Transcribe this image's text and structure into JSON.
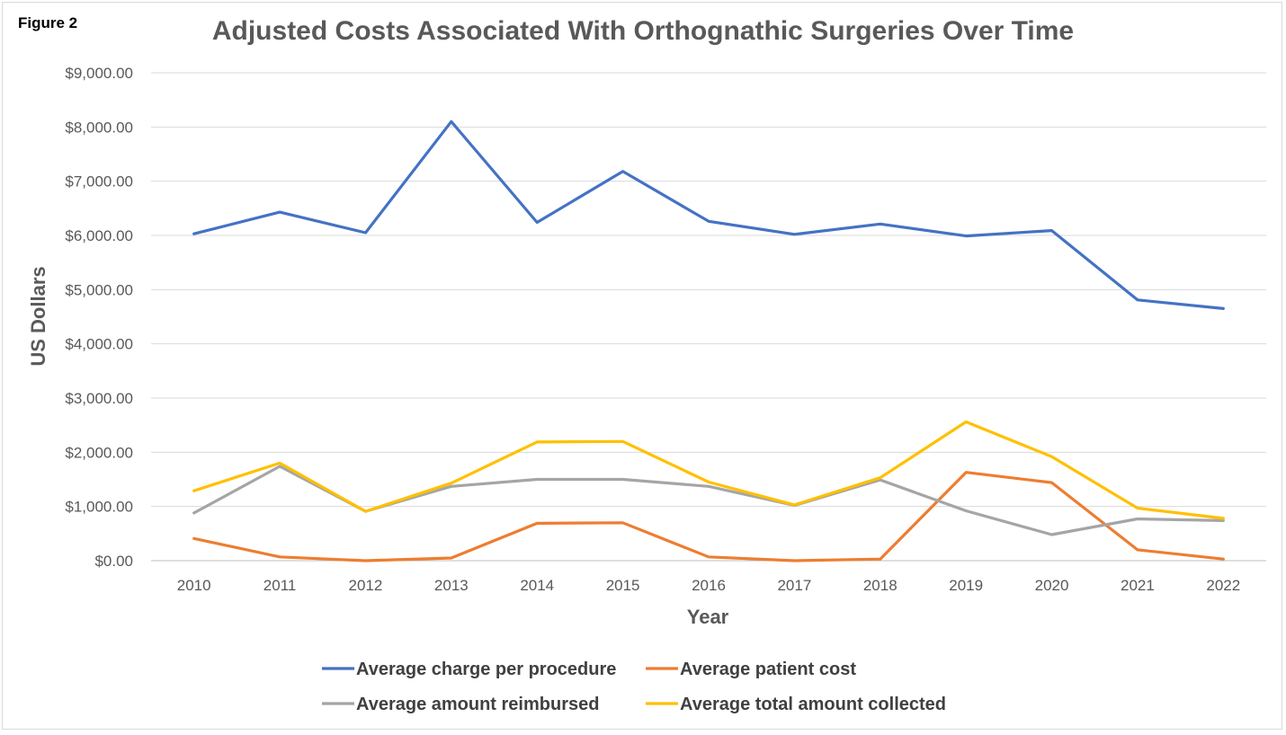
{
  "figure_label": "Figure 2",
  "chart_data": {
    "type": "line",
    "title": "Adjusted Costs Associated With Orthognathic Surgeries Over Time",
    "xlabel": "Year",
    "ylabel": "US Dollars",
    "ylim": [
      0,
      9000
    ],
    "yticks": [
      0,
      1000,
      2000,
      3000,
      4000,
      5000,
      6000,
      7000,
      8000,
      9000
    ],
    "ytick_labels": [
      "$0.00",
      "$1,000.00",
      "$2,000.00",
      "$3,000.00",
      "$4,000.00",
      "$5,000.00",
      "$6,000.00",
      "$7,000.00",
      "$8,000.00",
      "$9,000.00"
    ],
    "categories": [
      "2010",
      "2011",
      "2012",
      "2013",
      "2014",
      "2015",
      "2016",
      "2017",
      "2018",
      "2019",
      "2020",
      "2021",
      "2022"
    ],
    "grid": true,
    "legend_position": "bottom",
    "series": [
      {
        "name": "Average charge per procedure",
        "color": "#4472C4",
        "values": [
          6030,
          6430,
          6050,
          8100,
          6240,
          7180,
          6260,
          6020,
          6210,
          5990,
          6090,
          4810,
          4650
        ]
      },
      {
        "name": "Average patient cost",
        "color": "#ED7D31",
        "values": [
          410,
          70,
          0,
          50,
          690,
          700,
          70,
          0,
          30,
          1630,
          1440,
          200,
          30
        ]
      },
      {
        "name": "Average amount reimbursed",
        "color": "#A5A5A5",
        "values": [
          880,
          1740,
          910,
          1370,
          1500,
          1500,
          1370,
          1020,
          1490,
          920,
          480,
          770,
          740
        ]
      },
      {
        "name": "Average total amount collected",
        "color": "#FFC000",
        "values": [
          1290,
          1800,
          910,
          1430,
          2190,
          2200,
          1450,
          1030,
          1530,
          2560,
          1920,
          970,
          780
        ]
      }
    ]
  }
}
